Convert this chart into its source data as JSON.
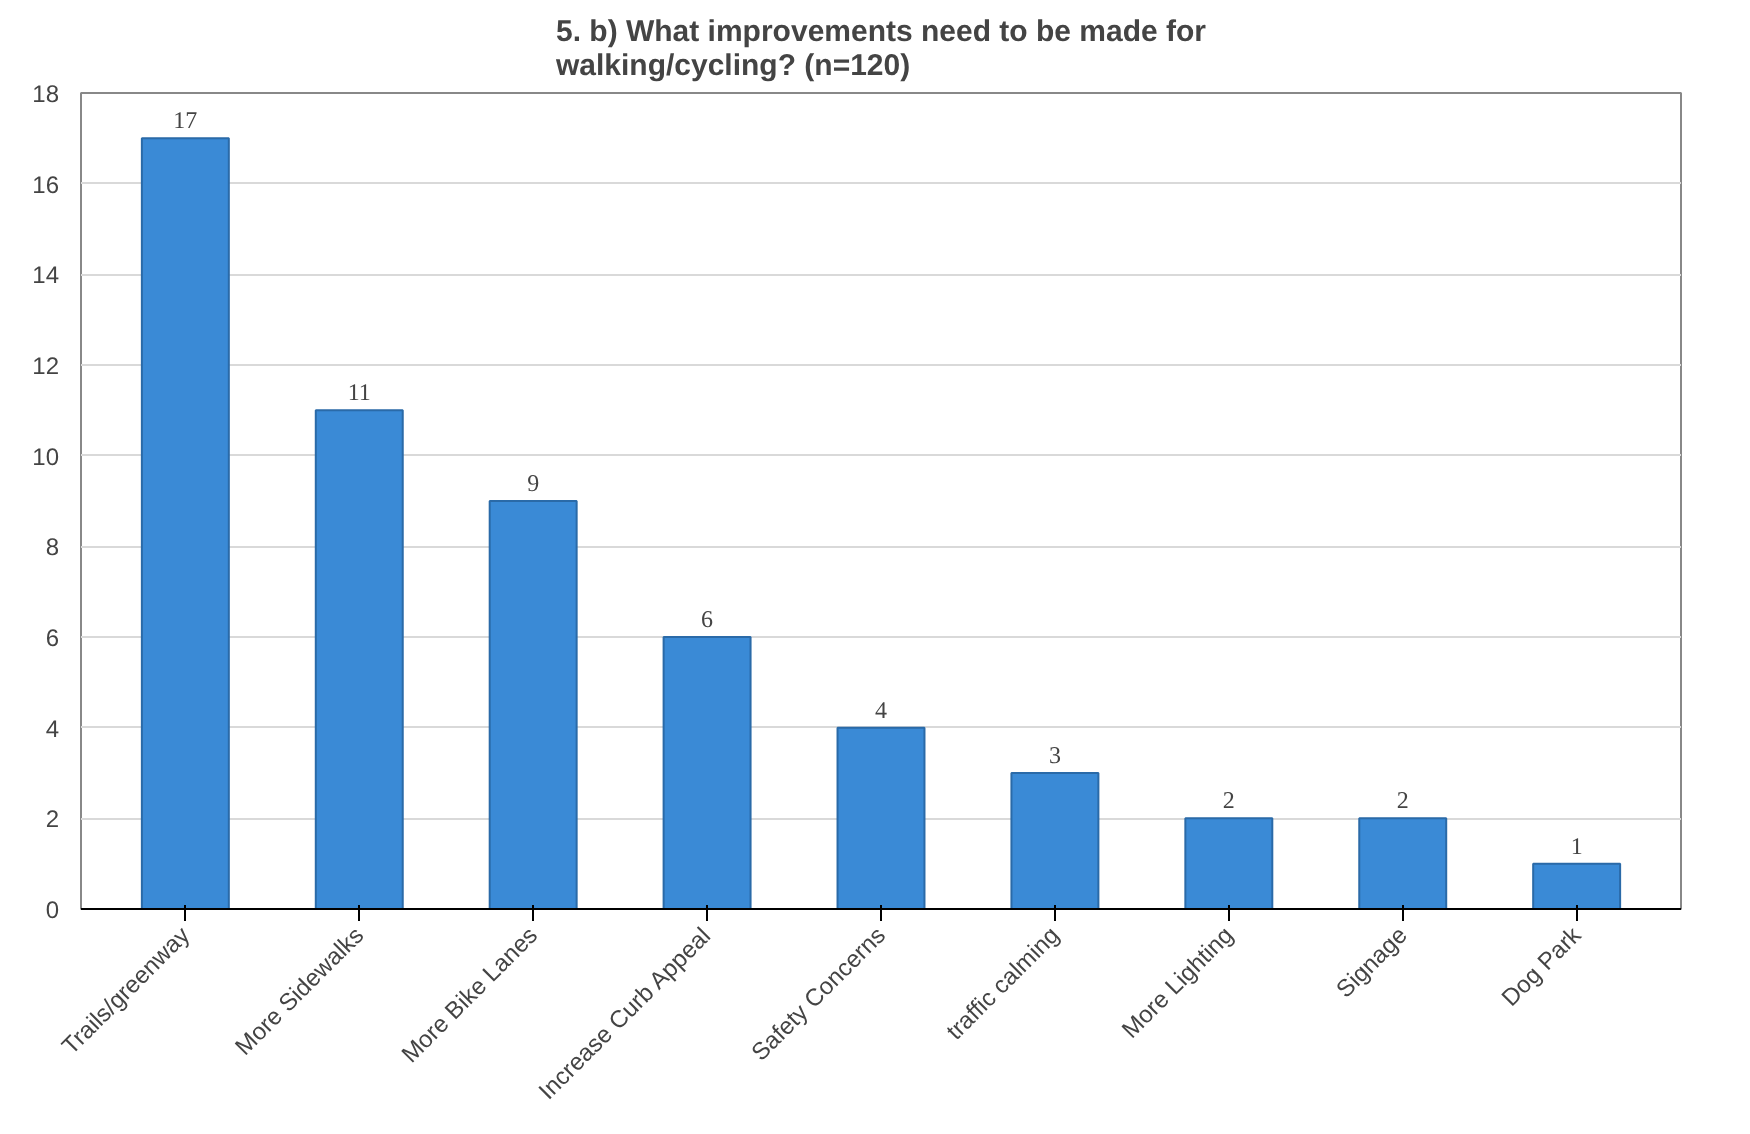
{
  "chart_data": {
    "type": "bar",
    "title": "5. b) What improvements need to be made for\nwalking/cycling? (n=120)",
    "categories": [
      "Trails/greenway",
      "More Sidewalks",
      "More Bike Lanes",
      "Increase Curb Appeal",
      "Safety Concerns",
      "traffic calming",
      "More Lighting",
      "Signage",
      "Dog Park"
    ],
    "values": [
      17,
      11,
      9,
      6,
      4,
      3,
      2,
      2,
      1
    ],
    "color": "#3a8ad6",
    "ylim": [
      0,
      18
    ],
    "yticks": [
      0,
      2,
      4,
      6,
      8,
      10,
      12,
      14,
      16,
      18
    ],
    "grid": "y",
    "data_labels": true
  }
}
